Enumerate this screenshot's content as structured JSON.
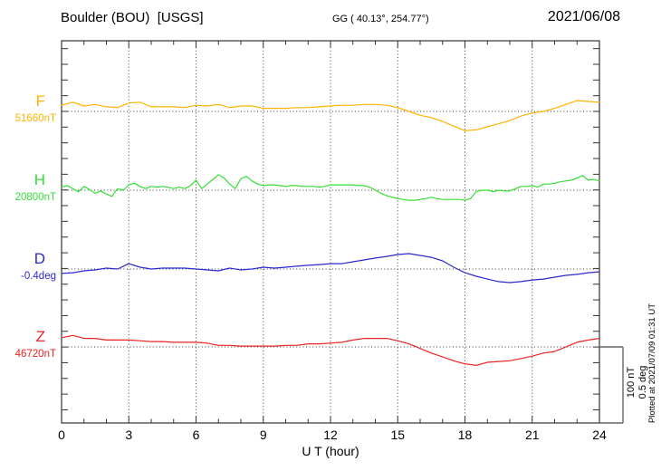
{
  "header": {
    "station": "Boulder (BOU)  [USGS]",
    "coords": "GG ( 40.13°, 254.77°)",
    "date": "2021/06/08"
  },
  "xaxis": {
    "label": "U T (hour)"
  },
  "scale_bar": {
    "line1": "100 nT",
    "line2": "0.5 deg"
  },
  "plotted_at": "Plotted at 2021/07/09 01:31 UT",
  "chart_data": {
    "type": "line",
    "title": "Boulder (BOU) [USGS] magnetogram, 2021/06/08",
    "xlabel": "U T (hour)",
    "xlim": [
      0,
      24
    ],
    "x_major_ticks": [
      0,
      3,
      6,
      9,
      12,
      15,
      18,
      21,
      24
    ],
    "x_minor_tick_step_hours": 1,
    "grid": "dotted vertical gridlines every 3 h; dotted horizontal baseline per channel",
    "scale_per_division": {
      "nT": 100,
      "deg": 0.5
    },
    "series": [
      {
        "name": "F",
        "unit": "nT",
        "baseline_value": 51660,
        "baseline_label": "51660nT",
        "color": "#FFB300",
        "x_step_hours": 0.5,
        "offsets": [
          8,
          12,
          7,
          9,
          6,
          5,
          11,
          12,
          6,
          6,
          6,
          5,
          8,
          7,
          9,
          5,
          7,
          7,
          4,
          4,
          4,
          5,
          5,
          6,
          7,
          8,
          8,
          9,
          9,
          8,
          5,
          0,
          -5,
          -8,
          -13,
          -19,
          -25,
          -24,
          -20,
          -16,
          -12,
          -6,
          -2,
          0,
          4,
          9,
          14,
          13,
          12
        ]
      },
      {
        "name": "H",
        "unit": "nT",
        "baseline_value": 20800,
        "baseline_label": "20800nT",
        "color": "#35DF35",
        "x_step_hours": 0.25,
        "offsets": [
          4,
          6,
          2,
          -2,
          5,
          1,
          -4,
          -1,
          -5,
          -8,
          2,
          0,
          7,
          9,
          5,
          2,
          5,
          4,
          5,
          4,
          2,
          4,
          2,
          6,
          13,
          2,
          8,
          14,
          20,
          16,
          8,
          2,
          15,
          18,
          12,
          8,
          6,
          7,
          7,
          6,
          5,
          6,
          6,
          5,
          5,
          5,
          4,
          5,
          7,
          7,
          7,
          7,
          7,
          6,
          6,
          4,
          0,
          -4,
          -7,
          -9,
          -11,
          -12,
          -13,
          -13,
          -12,
          -11,
          -9,
          -11,
          -12,
          -12,
          -12,
          -12,
          -13,
          -11,
          -2,
          0,
          0,
          -2,
          0,
          -1,
          -1,
          2,
          5,
          5,
          6,
          4,
          8,
          8,
          9,
          11,
          12,
          13,
          16,
          19,
          13,
          14,
          12
        ]
      },
      {
        "name": "D",
        "unit": "deg",
        "baseline_value": -0.4,
        "baseline_label": "-0.4deg",
        "color": "#2A2AD0",
        "x_step_hours": 0.5,
        "offsets": [
          -0.029,
          -0.024,
          -0.012,
          -0.006,
          0.006,
          0,
          0.035,
          0.012,
          0,
          0.006,
          0.006,
          0.006,
          0,
          -0.006,
          -0.012,
          0.006,
          -0.006,
          0,
          0.012,
          0.006,
          0.012,
          0.018,
          0.024,
          0.029,
          0.035,
          0.035,
          0.047,
          0.059,
          0.071,
          0.082,
          0.094,
          0.1,
          0.088,
          0.076,
          0.053,
          0.012,
          -0.024,
          -0.047,
          -0.065,
          -0.082,
          -0.088,
          -0.082,
          -0.071,
          -0.065,
          -0.053,
          -0.041,
          -0.035,
          -0.024,
          -0.018
        ]
      },
      {
        "name": "Z",
        "unit": "nT",
        "baseline_value": 46720,
        "baseline_label": "46720nT",
        "color": "#EE2222",
        "x_step_hours": 0.5,
        "offsets": [
          12,
          15,
          11,
          11,
          9,
          9,
          9,
          8,
          7,
          7,
          6,
          6,
          6,
          5,
          2,
          2,
          1,
          1,
          1,
          1,
          2,
          2,
          4,
          4,
          5,
          6,
          9,
          11,
          11,
          11,
          8,
          4,
          -2,
          -8,
          -13,
          -18,
          -22,
          -24,
          -20,
          -19,
          -18,
          -15,
          -12,
          -8,
          -6,
          0,
          6,
          9,
          11
        ]
      }
    ]
  }
}
